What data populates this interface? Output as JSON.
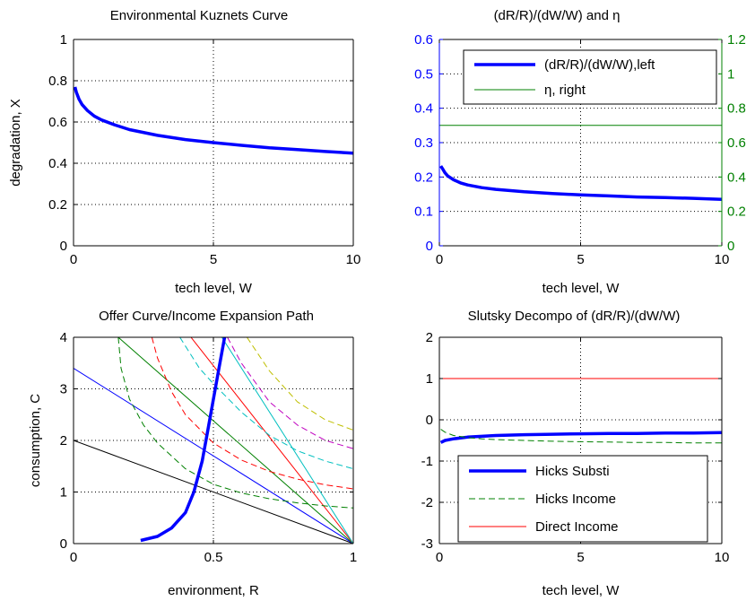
{
  "colors": {
    "blue": "#0000ff",
    "green": "#008000",
    "red": "#ff0000",
    "cyan": "#00bfbf",
    "magenta": "#bf00bf",
    "olive": "#bfbf00",
    "black": "#000000",
    "grid": "#000000",
    "background": "#ffffff"
  },
  "chart_data": [
    {
      "id": "ekc",
      "type": "line",
      "title": "Environmental Kuznets Curve",
      "xlabel": "tech level, W",
      "ylabel": "degradation, X",
      "xlim": [
        0,
        10
      ],
      "ylim": [
        0,
        1
      ],
      "xticks": [
        0,
        5,
        10
      ],
      "xtick_labels": [
        "0",
        "5",
        "10"
      ],
      "yticks": [
        0,
        0.2,
        0.4,
        0.6,
        0.8,
        1
      ],
      "ytick_labels": [
        "0",
        "0.2",
        "0.4",
        "0.6",
        "0.8",
        "1"
      ],
      "grid": true,
      "series": [
        {
          "color": "#0000ff",
          "width": 3.5,
          "x": [
            0.05,
            0.1,
            0.2,
            0.3,
            0.5,
            0.75,
            1,
            1.5,
            2,
            3,
            4,
            5,
            6,
            7,
            8,
            9,
            10
          ],
          "values": [
            0.77,
            0.745,
            0.71,
            0.685,
            0.655,
            0.628,
            0.61,
            0.585,
            0.563,
            0.535,
            0.515,
            0.5,
            0.487,
            0.475,
            0.466,
            0.457,
            0.449
          ]
        }
      ]
    },
    {
      "id": "elasticity",
      "type": "line",
      "title": "(dR/R)/(dW/W) and   η",
      "xlabel": "tech level, W",
      "xlim": [
        0,
        10
      ],
      "ylim": [
        0,
        0.6
      ],
      "y2lim": [
        0,
        1.2
      ],
      "xticks": [
        0,
        5,
        10
      ],
      "xtick_labels": [
        "0",
        "5",
        "10"
      ],
      "yticks": [
        0,
        0.1,
        0.2,
        0.3,
        0.4,
        0.5,
        0.6
      ],
      "ytick_labels": [
        "0",
        "0.1",
        "0.2",
        "0.3",
        "0.4",
        "0.5",
        "0.6"
      ],
      "y2ticks": [
        0,
        0.2,
        0.4,
        0.6,
        0.8,
        1,
        1.2
      ],
      "y2tick_labels": [
        "0",
        "0.2",
        "0.4",
        "0.6",
        "0.8",
        "1",
        "1.2"
      ],
      "grid": true,
      "legend_position": "top-right",
      "legend": [
        {
          "label": "(dR/R)/(dW/W),left",
          "color": "#0000ff",
          "width": 3.5,
          "dash": ""
        },
        {
          "label": "η, right",
          "color": "#008000",
          "width": 1,
          "dash": ""
        }
      ],
      "series": [
        {
          "name": "(dR/R)/(dW/W),left",
          "axis": "left",
          "color": "#0000ff",
          "width": 3.5,
          "x": [
            0.05,
            0.1,
            0.2,
            0.3,
            0.5,
            0.75,
            1,
            1.5,
            2,
            3,
            4,
            5,
            6,
            7,
            8,
            9,
            10
          ],
          "values": [
            0.232,
            0.226,
            0.212,
            0.203,
            0.192,
            0.183,
            0.177,
            0.169,
            0.164,
            0.157,
            0.152,
            0.148,
            0.145,
            0.142,
            0.14,
            0.138,
            0.135
          ]
        },
        {
          "name": "η, right",
          "axis": "right",
          "color": "#008000",
          "width": 1,
          "x": [
            0,
            10
          ],
          "values": [
            0.7,
            0.7
          ]
        }
      ]
    },
    {
      "id": "offer",
      "type": "line",
      "title": "Offer Curve/Income Expansion Path",
      "xlabel": "environment, R",
      "ylabel": "consumption, C",
      "xlim": [
        0,
        1
      ],
      "ylim": [
        0,
        4
      ],
      "xticks": [
        0,
        0.5,
        1
      ],
      "xtick_labels": [
        "0",
        "0.5",
        "1"
      ],
      "yticks": [
        0,
        1,
        2,
        3,
        4
      ],
      "ytick_labels": [
        "0",
        "1",
        "2",
        "3",
        "4"
      ],
      "grid": true,
      "series": [
        {
          "color": "#000000",
          "width": 1,
          "dash": "",
          "x": [
            0,
            1
          ],
          "values": [
            2,
            0
          ]
        },
        {
          "color": "#0000ff",
          "width": 1,
          "dash": "",
          "x": [
            0,
            1
          ],
          "values": [
            3.4,
            0
          ]
        },
        {
          "color": "#008000",
          "width": 1,
          "dash": "",
          "x": [
            0.16,
            1
          ],
          "values": [
            4,
            0
          ]
        },
        {
          "color": "#ff0000",
          "width": 1,
          "dash": "",
          "x": [
            0.42,
            1
          ],
          "values": [
            4,
            0
          ]
        },
        {
          "color": "#00bfbf",
          "width": 1,
          "dash": "",
          "x": [
            0.53,
            1
          ],
          "values": [
            4,
            0
          ]
        },
        {
          "color": "#008000",
          "width": 1,
          "dash": "7 4",
          "x": [
            0.16,
            0.17,
            0.2,
            0.25,
            0.3,
            0.4,
            0.5,
            0.6,
            0.7,
            0.8,
            0.9,
            1
          ],
          "values": [
            4,
            3.4,
            2.8,
            2.3,
            1.95,
            1.45,
            1.15,
            0.98,
            0.87,
            0.79,
            0.73,
            0.69
          ]
        },
        {
          "color": "#ff0000",
          "width": 1,
          "dash": "7 4",
          "x": [
            0.28,
            0.3,
            0.35,
            0.4,
            0.5,
            0.6,
            0.7,
            0.8,
            0.9,
            1
          ],
          "values": [
            4,
            3.6,
            2.95,
            2.5,
            1.95,
            1.62,
            1.4,
            1.25,
            1.14,
            1.06
          ]
        },
        {
          "color": "#00bfbf",
          "width": 1,
          "dash": "7 4",
          "x": [
            0.38,
            0.45,
            0.5,
            0.6,
            0.7,
            0.8,
            0.9,
            1
          ],
          "values": [
            4,
            3.4,
            3.1,
            2.55,
            2.1,
            1.8,
            1.6,
            1.45
          ]
        },
        {
          "color": "#bf00bf",
          "width": 1,
          "dash": "7 4",
          "x": [
            0.55,
            0.6,
            0.7,
            0.8,
            0.9,
            1
          ],
          "values": [
            4,
            3.5,
            2.75,
            2.3,
            2.0,
            1.84
          ]
        },
        {
          "color": "#bfbf00",
          "width": 1,
          "dash": "7 4",
          "x": [
            0.62,
            0.7,
            0.8,
            0.9,
            1
          ],
          "values": [
            4,
            3.35,
            2.75,
            2.4,
            2.2
          ]
        },
        {
          "color": "#0000ff",
          "width": 3.5,
          "dash": "",
          "x": [
            0.24,
            0.3,
            0.35,
            0.4,
            0.43,
            0.46,
            0.48,
            0.5,
            0.52,
            0.54
          ],
          "values": [
            0.06,
            0.14,
            0.3,
            0.6,
            1.0,
            1.6,
            2.2,
            2.8,
            3.4,
            4.0
          ]
        }
      ]
    },
    {
      "id": "slutsky",
      "type": "line",
      "title": "Slutsky Decompo of (dR/R)/(dW/W)",
      "xlabel": "tech level, W",
      "xlim": [
        0,
        10
      ],
      "ylim": [
        -3,
        2
      ],
      "xticks": [
        0,
        5,
        10
      ],
      "xtick_labels": [
        "0",
        "5",
        "10"
      ],
      "yticks": [
        -3,
        -2,
        -1,
        0,
        1,
        2
      ],
      "ytick_labels": [
        "-3",
        "-2",
        "-1",
        "0",
        "1",
        "2"
      ],
      "grid": true,
      "legend_position": "bottom-right",
      "legend": [
        {
          "label": "Hicks Substi",
          "color": "#0000ff",
          "width": 3.5,
          "dash": ""
        },
        {
          "label": "Hicks Income",
          "color": "#008000",
          "width": 1,
          "dash": "7 4"
        },
        {
          "label": "Direct Income",
          "color": "#ff0000",
          "width": 1,
          "dash": ""
        }
      ],
      "series": [
        {
          "name": "Hicks Substi",
          "color": "#0000ff",
          "width": 3.5,
          "dash": "",
          "x": [
            0.05,
            0.2,
            0.5,
            1,
            1.5,
            2,
            3,
            4,
            5,
            6,
            7,
            8,
            9,
            10
          ],
          "values": [
            -0.55,
            -0.5,
            -0.46,
            -0.42,
            -0.4,
            -0.38,
            -0.36,
            -0.35,
            -0.34,
            -0.33,
            -0.33,
            -0.32,
            -0.32,
            -0.31
          ]
        },
        {
          "name": "Hicks Income",
          "color": "#008000",
          "width": 1,
          "dash": "7 4",
          "x": [
            0.05,
            0.2,
            0.5,
            1,
            1.5,
            2,
            3,
            4,
            5,
            6,
            7,
            8,
            9,
            10
          ],
          "values": [
            -0.23,
            -0.3,
            -0.38,
            -0.43,
            -0.46,
            -0.48,
            -0.5,
            -0.52,
            -0.53,
            -0.54,
            -0.55,
            -0.55,
            -0.56,
            -0.56
          ]
        },
        {
          "name": "Direct Income",
          "color": "#ff0000",
          "width": 1,
          "dash": "",
          "x": [
            0,
            10
          ],
          "values": [
            1,
            1
          ]
        }
      ]
    }
  ]
}
